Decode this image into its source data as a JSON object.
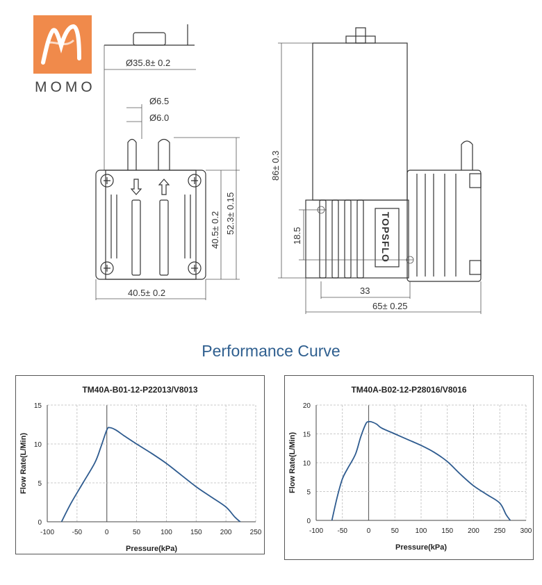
{
  "logo": {
    "name": "MOMO",
    "icon": "momo-m-logo"
  },
  "drawing": {
    "dims_left": {
      "d1": "Ø35.8± 0.2",
      "d2": "Ø6.5",
      "d3": "Ø6.0",
      "h1": "40.5± 0.2",
      "h2": "52.3± 0.15",
      "w1": "40.5± 0.2"
    },
    "dims_right": {
      "h1": "86± 0.3",
      "h2": "18.5",
      "w1": "33",
      "w2": "65± 0.25",
      "brand": "TOPSFLO"
    }
  },
  "performance_title": "Performance Curve",
  "chart_data": [
    {
      "type": "line",
      "title": "TM40A-B01-12-P22013/V8013",
      "xlabel": "Pressure(kPa)",
      "ylabel": "Flow Rate(L/Min)",
      "xlim": [
        -100,
        250
      ],
      "ylim": [
        0,
        15
      ],
      "xticks": [
        -100,
        -50,
        0,
        50,
        100,
        150,
        200,
        250
      ],
      "yticks": [
        0,
        5,
        10,
        15
      ],
      "grid": true,
      "series": [
        {
          "color": "#2e5b8f",
          "x": [
            -76,
            -60,
            -40,
            -20,
            -10,
            0,
            5,
            15,
            30,
            50,
            75,
            100,
            125,
            150,
            175,
            200,
            215,
            224
          ],
          "y": [
            0,
            2.4,
            5.0,
            7.6,
            9.6,
            11.8,
            12.1,
            11.8,
            11.0,
            10.0,
            8.8,
            7.5,
            6.0,
            4.5,
            3.2,
            1.9,
            0.6,
            0
          ]
        }
      ]
    },
    {
      "type": "line",
      "title": "TM40A-B02-12-P28016/V8016",
      "xlabel": "Pressure(kPa)",
      "ylabel": "Flow Rate(L/Min)",
      "xlim": [
        -100,
        300
      ],
      "ylim": [
        0,
        20
      ],
      "xticks": [
        -100,
        -50,
        0,
        50,
        100,
        150,
        200,
        250,
        300
      ],
      "yticks": [
        0,
        5,
        10,
        15,
        20
      ],
      "grid": true,
      "series": [
        {
          "color": "#2e5b8f",
          "x": [
            -70,
            -60,
            -50,
            -40,
            -25,
            -15,
            -5,
            0,
            5,
            15,
            25,
            50,
            75,
            100,
            125,
            150,
            175,
            200,
            225,
            250,
            262,
            270
          ],
          "y": [
            0,
            4.0,
            7.2,
            9.0,
            11.5,
            14.5,
            16.8,
            17.1,
            17.1,
            16.7,
            16.0,
            15.0,
            14.0,
            13.0,
            11.8,
            10.2,
            8.0,
            6.0,
            4.5,
            3.0,
            1.0,
            0
          ]
        }
      ]
    }
  ]
}
